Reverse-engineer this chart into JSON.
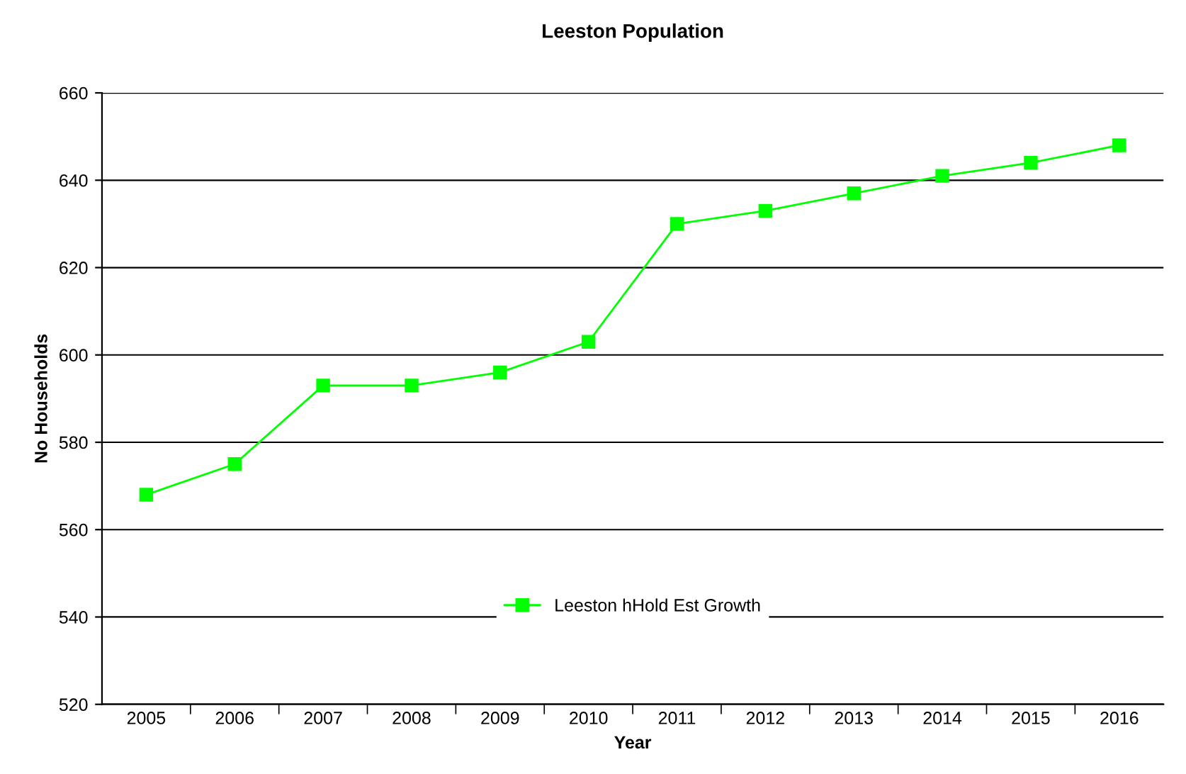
{
  "chart_data": {
    "type": "line",
    "title": "Leeston Population",
    "xlabel": "Year",
    "ylabel": "No Households",
    "categories": [
      "2005",
      "2006",
      "2007",
      "2008",
      "2009",
      "2010",
      "2011",
      "2012",
      "2013",
      "2014",
      "2015",
      "2016"
    ],
    "series": [
      {
        "name": "Leeston hHold Est Growth",
        "color": "#00ff00",
        "values": [
          568,
          575,
          593,
          593,
          596,
          603,
          630,
          633,
          637,
          641,
          644,
          648
        ]
      }
    ],
    "ylim": [
      520,
      660
    ],
    "yticks": [
      520,
      540,
      560,
      580,
      600,
      620,
      640,
      660
    ],
    "grid": "y",
    "legend": "bottom",
    "marker": "square",
    "line_style": "solid"
  }
}
